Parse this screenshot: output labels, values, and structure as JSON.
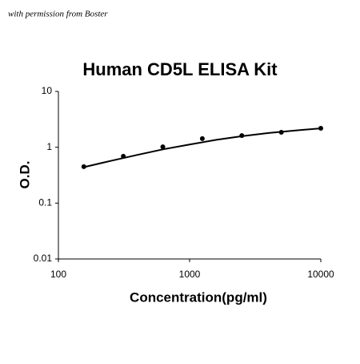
{
  "watermark": "with permission from Boster",
  "chart_data": {
    "type": "scatter",
    "title": "Human CD5L ELISA Kit",
    "x_label": "Concentration(pg/ml)",
    "y_label": "O.D.",
    "x": [
      156.25,
      312.5,
      625,
      1250,
      2500,
      5000,
      10000
    ],
    "values": [
      0.45,
      0.69,
      1.02,
      1.43,
      1.62,
      1.85,
      2.19
    ],
    "color": "#000000",
    "curve": {
      "x": [
        156.25,
        250,
        400,
        630,
        1000,
        1600,
        2500,
        4000,
        6300,
        10000
      ],
      "values": [
        0.44,
        0.57,
        0.73,
        0.92,
        1.12,
        1.36,
        1.58,
        1.8,
        1.99,
        2.18
      ]
    },
    "xlog": true,
    "ylog": true,
    "grid": false,
    "xlim": [
      100,
      10000
    ],
    "ylim": [
      0.01,
      10
    ],
    "xticks": [
      100,
      1000,
      10000
    ],
    "yticks": [
      0.01,
      0.1,
      1,
      10
    ]
  }
}
